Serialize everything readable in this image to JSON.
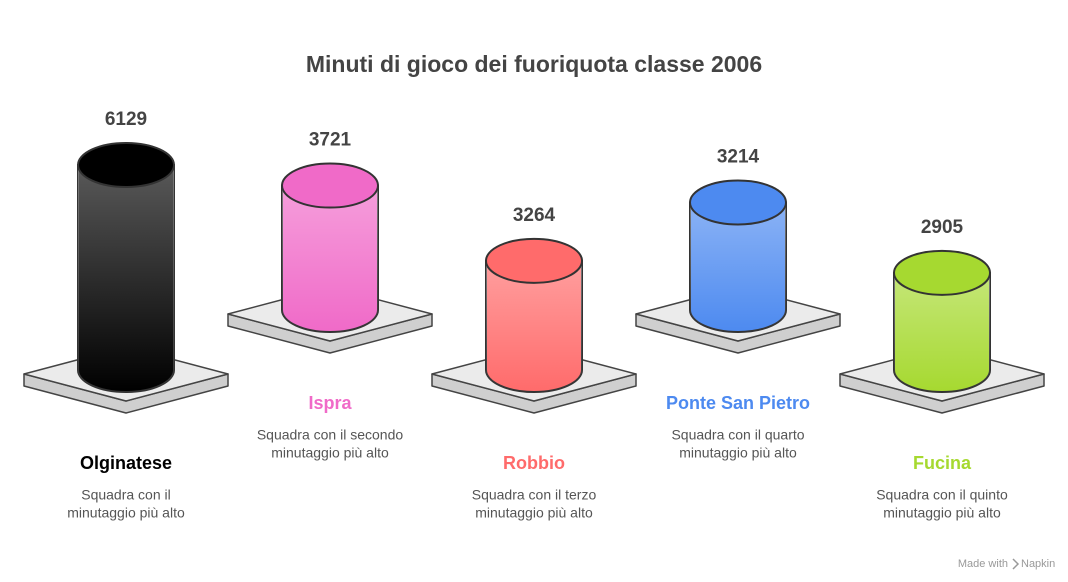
{
  "chart_data": {
    "type": "cylinder",
    "title": "Minuti di gioco dei fuoriquota classe 2006",
    "categories": [
      "Olginatese",
      "Ispra",
      "Robbio",
      "Ponte San Pietro",
      "Fucina"
    ],
    "values": [
      6129,
      3721,
      3264,
      3214,
      2905
    ],
    "colors": [
      "#000000",
      "#f06ac8",
      "#ff6b6b",
      "#4d8af0",
      "#a6d930"
    ],
    "descriptions": [
      [
        "Squadra con il",
        "minutaggio più alto"
      ],
      [
        "Squadra con il secondo",
        "minutaggio più alto"
      ],
      [
        "Squadra con il terzo",
        "minutaggio più alto"
      ],
      [
        "Squadra con il quarto",
        "minutaggio più alto"
      ],
      [
        "Squadra con il quinto",
        "minutaggio più alto"
      ]
    ]
  },
  "footer": {
    "made_with": "Made with",
    "brand": "Napkin"
  }
}
